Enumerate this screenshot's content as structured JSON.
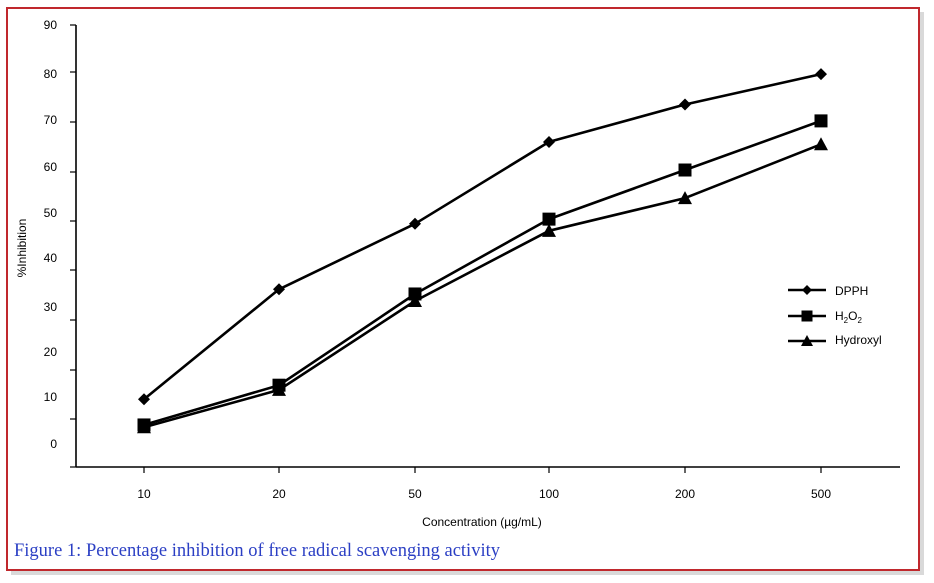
{
  "figure": {
    "caption": "Figure 1: Percentage inhibition of free radical scavenging activity"
  },
  "colors": {
    "frame": "#c0282d",
    "caption": "#2b3fc4",
    "series": "#000000"
  },
  "chart_data": {
    "type": "line",
    "categories": [
      "10",
      "20",
      "50",
      "100",
      "200",
      "500"
    ],
    "xlabel": "Concentration (µg/mL)",
    "ylabel": "%Inhibition",
    "ylim": [
      0,
      90
    ],
    "yticks": [
      "90",
      "80",
      "70",
      "60",
      "50",
      "40",
      "30",
      "20",
      "10",
      "0"
    ],
    "grid": false,
    "legend_position": "right",
    "series": [
      {
        "name": "DPPH",
        "marker": "diamond",
        "values": [
          10,
          33.5,
          47.5,
          65,
          73,
          79.5
        ]
      },
      {
        "name": "H2O2",
        "name_base": "H",
        "name_sub1": "2",
        "name_mid": "O",
        "name_sub2": "2",
        "marker": "square",
        "values": [
          4.5,
          13,
          32.5,
          48.5,
          59,
          69.5
        ]
      },
      {
        "name": "Hydroxyl",
        "marker": "triangle",
        "values": [
          4,
          12,
          31,
          46,
          53,
          64.5
        ]
      }
    ]
  }
}
